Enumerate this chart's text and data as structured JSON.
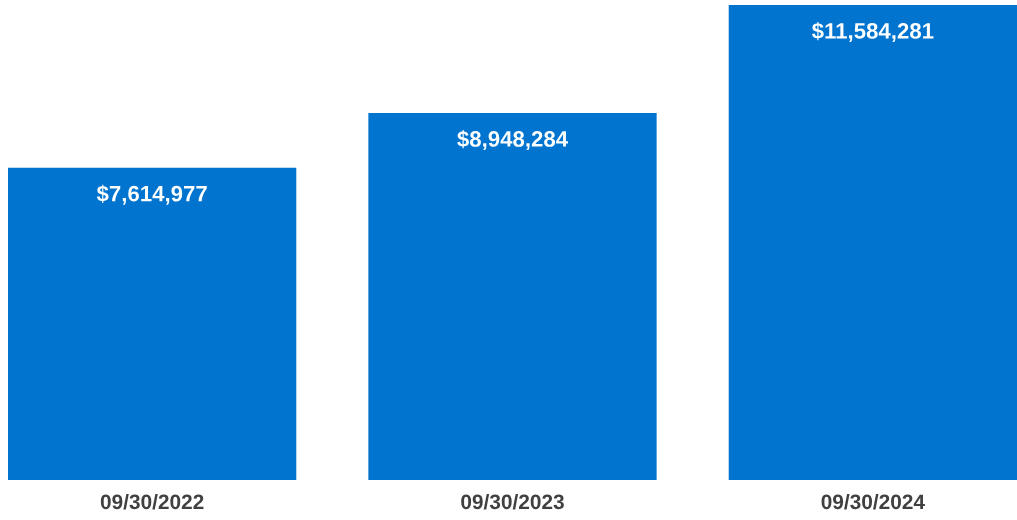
{
  "chart_data": {
    "type": "bar",
    "categories": [
      "09/30/2022",
      "09/30/2023",
      "09/30/2024"
    ],
    "values": [
      7614977,
      8948284,
      11584281
    ],
    "value_labels": [
      "$7,614,977",
      "$8,948,284",
      "$11,584,281"
    ],
    "color": "#0074cf"
  }
}
